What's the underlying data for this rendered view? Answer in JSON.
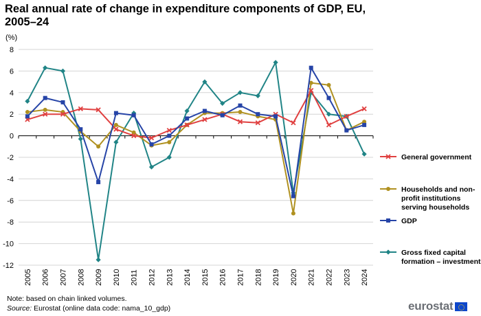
{
  "title": "Real annual rate of change in expenditure components of GDP, EU, 2005–24",
  "note": "Note: based on chain linked volumes.",
  "source": {
    "label": "Source:",
    "text": " Eurostat (online data code: nama_10_gdp)"
  },
  "logo": "eurostat",
  "chart_data": {
    "type": "line",
    "title": "Real annual rate of change in expenditure components of GDP, EU, 2005–24",
    "ylabel": "(%)",
    "xlabel": "",
    "ylim": [
      -12,
      8
    ],
    "yticks": [
      8,
      6,
      4,
      2,
      0,
      -2,
      -4,
      -6,
      -8,
      -10,
      -12
    ],
    "grid": "horizontal",
    "legend_position": "right",
    "x": [
      "2005",
      "2006",
      "2007",
      "2008",
      "2009",
      "2010",
      "2011",
      "2012",
      "2013",
      "2014",
      "2015",
      "2016",
      "2017",
      "2018",
      "2019",
      "2020",
      "2021",
      "2022",
      "2023",
      "2024"
    ],
    "series": [
      {
        "name": "General government",
        "color": "#e04040",
        "marker": "cross",
        "values": [
          1.5,
          2.0,
          2.0,
          2.5,
          2.4,
          0.6,
          0.0,
          -0.2,
          0.5,
          1.0,
          1.5,
          2.0,
          1.3,
          1.2,
          2.0,
          1.2,
          4.2,
          1.0,
          1.8,
          2.5
        ]
      },
      {
        "name": "Households and non-profit institutions serving households",
        "color": "#b09120",
        "marker": "circle",
        "values": [
          2.2,
          2.4,
          2.2,
          0.4,
          -1.0,
          1.0,
          0.3,
          -0.9,
          -0.6,
          1.0,
          2.1,
          2.1,
          2.2,
          1.8,
          1.5,
          -7.2,
          4.9,
          4.7,
          0.5,
          1.3
        ]
      },
      {
        "name": "GDP",
        "color": "#2644a7",
        "marker": "square",
        "values": [
          1.8,
          3.5,
          3.1,
          0.6,
          -4.3,
          2.1,
          1.9,
          -0.8,
          0.0,
          1.6,
          2.3,
          1.9,
          2.8,
          2.0,
          1.8,
          -5.6,
          6.3,
          3.5,
          0.5,
          1.0
        ]
      },
      {
        "name": "Gross fixed capital formation – investment",
        "color": "#208486",
        "marker": "diamond",
        "values": [
          3.2,
          6.3,
          6.0,
          -0.3,
          -11.5,
          -0.6,
          2.1,
          -2.9,
          -2.0,
          2.3,
          5.0,
          3.0,
          4.0,
          3.7,
          6.8,
          -5.3,
          4.0,
          2.0,
          1.8,
          -1.7
        ]
      }
    ]
  }
}
